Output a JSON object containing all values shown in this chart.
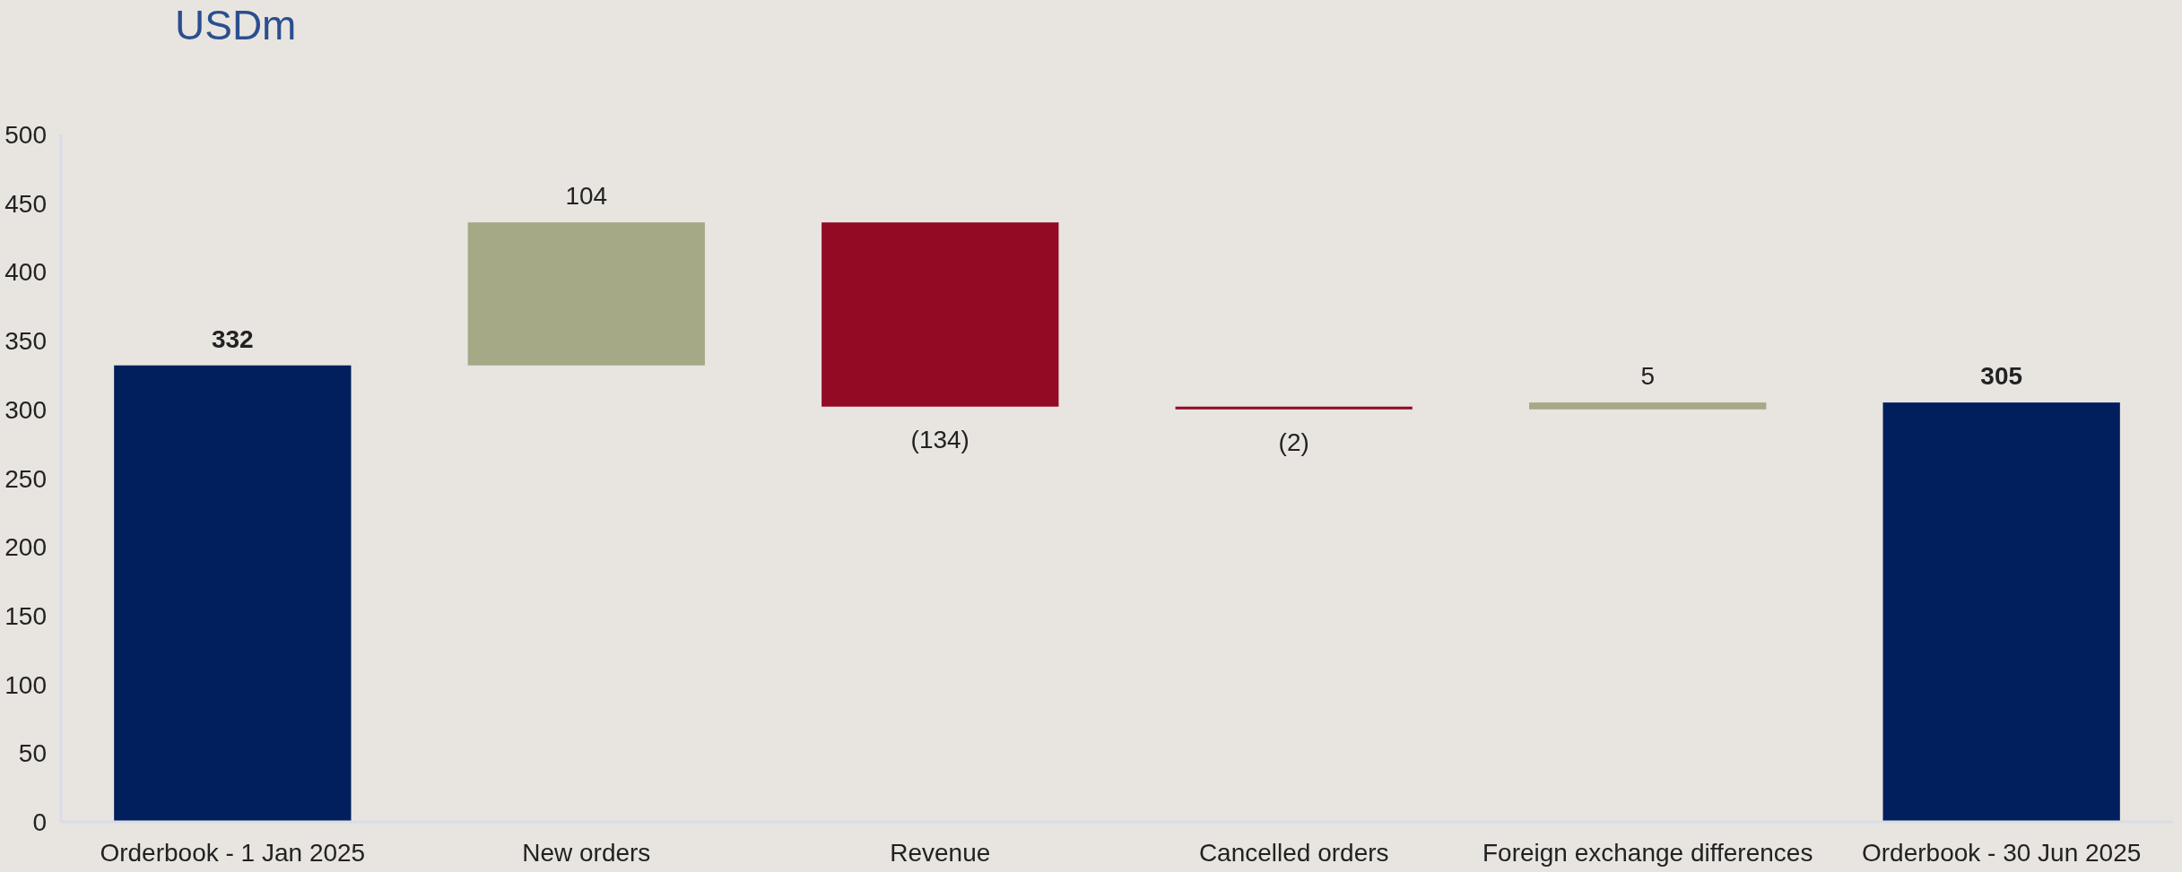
{
  "chart_data": {
    "type": "bar",
    "title": "USDm",
    "categories": [
      "Orderbook - 1 Jan 2025",
      "New orders",
      "Revenue",
      "Cancelled orders",
      "Foreign exchange differences",
      "Orderbook - 30 Jun 2025"
    ],
    "values": [
      332,
      104,
      -134,
      -2,
      5,
      305
    ],
    "base": [
      0,
      332,
      436,
      302,
      300,
      0
    ],
    "colors": [
      "#001f5c",
      "#a5a986",
      "#930a25",
      "#930a25",
      "#a5a986",
      "#001f5c"
    ],
    "value_labels": [
      "332",
      "104",
      "(134)",
      "(2)",
      "5",
      "305"
    ],
    "ylim": [
      0,
      500
    ],
    "yticks": [
      0,
      50,
      100,
      150,
      200,
      250,
      300,
      350,
      400,
      450,
      500
    ],
    "grid": false
  }
}
